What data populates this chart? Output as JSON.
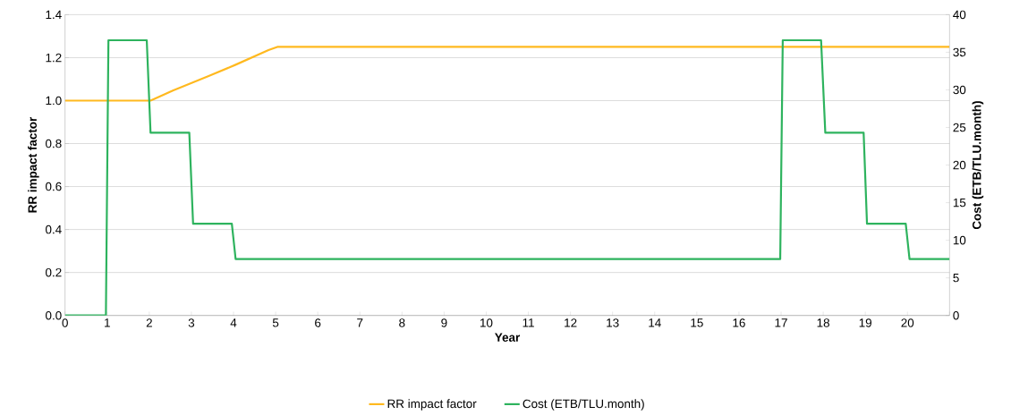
{
  "chart_data": {
    "type": "line",
    "xlabel": "Year",
    "ylabel": "RR impact factor",
    "y2label": "Cost (ETB/TLU.month)",
    "xlim": [
      0,
      21
    ],
    "xticks": [
      0,
      1,
      2,
      3,
      4,
      5,
      6,
      7,
      8,
      9,
      10,
      11,
      12,
      13,
      14,
      15,
      16,
      17,
      18,
      19,
      20,
      {
        "value": 21,
        "label": null
      }
    ],
    "ylim": [
      0,
      1.4
    ],
    "yticks": [
      {
        "value": 0,
        "label": "0.0"
      },
      0.2,
      0.4,
      0.6,
      0.8,
      {
        "value": 1,
        "label": "1.0"
      },
      1.2,
      1.4
    ],
    "y2lim": [
      0,
      40
    ],
    "y2ticks": [
      0,
      5,
      10,
      15,
      20,
      25,
      30,
      35,
      40
    ],
    "grid": "y",
    "legend": "bottom",
    "marker": "none",
    "line_style": "solid",
    "series": [
      {
        "name": "RR impact factor",
        "color": "#ffb91f",
        "x": [
          0,
          2.03,
          2.56,
          3.41,
          4.05,
          4.83,
          5.04,
          21
        ],
        "values": [
          1.0,
          1.0,
          1.047,
          1.114,
          1.167,
          1.235,
          1.25,
          1.25
        ]
      },
      {
        "name": "Cost (ETB/TLU.month)",
        "color": "#2eb35e",
        "axis": "y2",
        "x": [
          0,
          0.97,
          1.03,
          1.94,
          2.03,
          2.95,
          3.04,
          3.96,
          4.05,
          16.98,
          17.04,
          17.95,
          18.05,
          18.96,
          19.04,
          19.96,
          20.05,
          21
        ],
        "values": [
          0,
          0,
          36.6,
          36.6,
          24.3,
          24.3,
          12.2,
          12.2,
          7.5,
          7.5,
          36.6,
          36.6,
          24.3,
          24.3,
          12.2,
          12.2,
          7.5,
          7.5
        ]
      }
    ]
  }
}
